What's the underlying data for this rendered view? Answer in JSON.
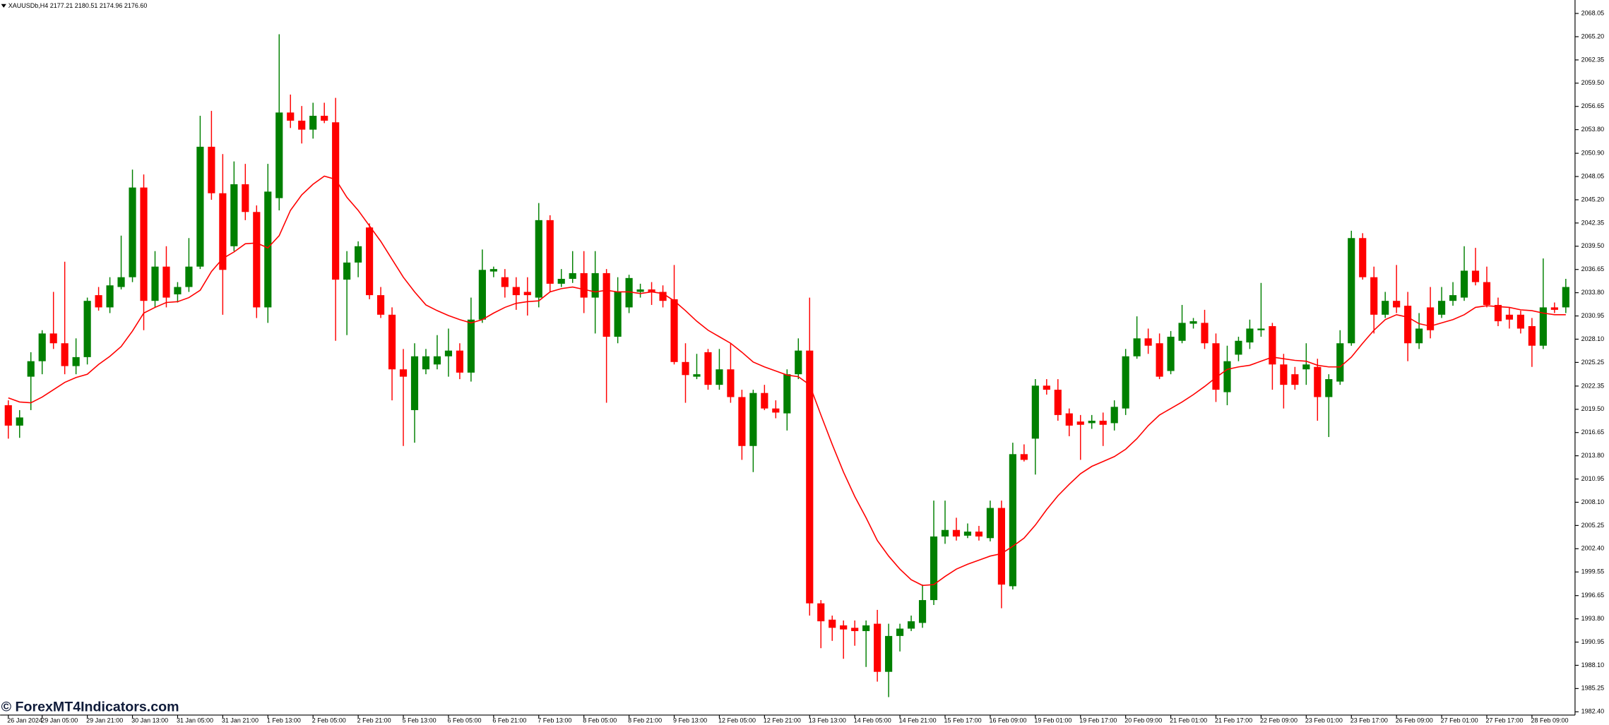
{
  "chart_data": {
    "type": "candlestick",
    "title": "XAUUSDb,H4 2177.21 2180.51 2174.96 2176.60",
    "watermark": "© ForexMT4Indicators.com",
    "up_color": "#008000",
    "down_color": "#ff0000",
    "grid": false,
    "categories": [
      "26 Jan 2024",
      null,
      null,
      "29 Jan 05:00",
      null,
      null,
      null,
      "29 Jan 21:00",
      null,
      null,
      null,
      "30 Jan 13:00",
      null,
      null,
      null,
      "31 Jan 05:00",
      null,
      null,
      null,
      "31 Jan 21:00",
      null,
      null,
      null,
      "1 Feb 13:00",
      null,
      null,
      null,
      "2 Feb 05:00",
      null,
      null,
      null,
      "2 Feb 21:00",
      null,
      null,
      null,
      "5 Feb 13:00",
      null,
      null,
      null,
      "6 Feb 05:00",
      null,
      null,
      null,
      "6 Feb 21:00",
      null,
      null,
      null,
      "7 Feb 13:00",
      null,
      null,
      null,
      "8 Feb 05:00",
      null,
      null,
      null,
      "8 Feb 21:00",
      null,
      null,
      null,
      "9 Feb 13:00",
      null,
      null,
      null,
      "12 Feb 05:00",
      null,
      null,
      null,
      "12 Feb 21:00",
      null,
      null,
      null,
      "13 Feb 13:00",
      null,
      null,
      null,
      "14 Feb 05:00",
      null,
      null,
      null,
      "14 Feb 21:00",
      null,
      null,
      null,
      "15 Feb 17:00",
      null,
      null,
      null,
      "16 Feb 09:00",
      null,
      null,
      null,
      "19 Feb 01:00",
      null,
      null,
      null,
      "19 Feb 17:00",
      null,
      null,
      null,
      "20 Feb 09:00",
      null,
      null,
      null,
      "21 Feb 01:00",
      null,
      null,
      null,
      "21 Feb 17:00",
      null,
      null,
      null,
      "22 Feb 09:00",
      null,
      null,
      null,
      "23 Feb 01:00",
      null,
      null,
      null,
      "23 Feb 17:00",
      null,
      null,
      null,
      "26 Feb 09:00",
      null,
      null,
      null,
      "27 Feb 01:00",
      null,
      null,
      null,
      "27 Feb 17:00",
      null,
      null,
      null,
      "28 Feb 09:00",
      null,
      null,
      null
    ],
    "open": [
      2020.0,
      2017.5,
      2023.5,
      2025.4,
      2028.8,
      2027.6,
      2024.8,
      2025.9,
      2033.5,
      2032.0,
      2034.5,
      2035.7,
      2046.7,
      2032.8,
      2037.0,
      2033.6,
      2034.5,
      2037.0,
      2051.7,
      2046.0,
      2039.5,
      2047.1,
      2043.7,
      2032.0,
      2045.4,
      2055.9,
      2054.9,
      2053.8,
      2055.5,
      2054.7,
      2035.4,
      2037.5,
      2041.8,
      2033.5,
      2031.1,
      2024.4,
      2019.4,
      2024.4,
      2025.0,
      2026.0,
      2026.7,
      2024.0,
      2030.5,
      2036.4,
      2035.7,
      2034.5,
      2033.9,
      2033.2,
      2042.7,
      2034.9,
      2035.5,
      2036.2,
      2033.2,
      2036.2,
      2028.4,
      2032.0,
      2033.9,
      2034.2,
      2033.9,
      2033.0,
      2025.3,
      2023.5,
      2026.5,
      2022.5,
      2024.4,
      2021.0,
      2015.0,
      2021.5,
      2019.6,
      2019.0,
      2023.8,
      2026.7,
      1995.7,
      1993.7,
      1993.0,
      1992.7,
      1992.3,
      1993.2,
      1987.3,
      1991.7,
      1992.6,
      1993.3,
      1996.1,
      2003.9,
      2004.7,
      2004.0,
      2004.5,
      2003.7,
      2007.4,
      1997.8,
      2014.0,
      2015.9,
      2022.4,
      2021.9,
      2019.0,
      2018.0,
      2017.8,
      2018.1,
      2017.8,
      2019.6,
      2026.0,
      2028.2,
      2027.6,
      2024.2,
      2027.9,
      2030.0,
      2030.1,
      2027.6,
      2021.6,
      2026.2,
      2027.7,
      2029.2,
      2029.7,
      2025.0,
      2023.8,
      2024.4,
      2024.7,
      2021.0,
      2022.9,
      2027.6,
      2040.5,
      2035.7,
      2031.1,
      2032.8,
      2032.2,
      2027.6,
      2032.0,
      2031.1,
      2032.8,
      2033.2,
      2036.5,
      2035.1,
      2032.3,
      2031.1,
      2031.1,
      2029.7,
      2027.3,
      2032.0,
      2032.0
    ],
    "high": [
      2020.6,
      2019.4,
      2026.5,
      2029.2,
      2033.9,
      2037.6,
      2028.2,
      2033.2,
      2034.5,
      2035.7,
      2040.8,
      2048.9,
      2048.3,
      2038.9,
      2039.5,
      2035.1,
      2040.5,
      2055.5,
      2056.1,
      2050.8,
      2049.9,
      2049.6,
      2044.5,
      2049.6,
      2065.5,
      2058.1,
      2056.7,
      2057.1,
      2057.1,
      2057.7,
      2038.9,
      2040.1,
      2042.3,
      2034.5,
      2032.0,
      2026.9,
      2027.6,
      2026.9,
      2028.6,
      2029.4,
      2027.6,
      2033.2,
      2039.1,
      2037.0,
      2036.7,
      2035.7,
      2035.7,
      2044.8,
      2043.3,
      2036.7,
      2038.9,
      2038.9,
      2038.9,
      2036.7,
      2035.7,
      2036.0,
      2034.9,
      2035.1,
      2034.7,
      2037.2,
      2027.6,
      2026.3,
      2026.9,
      2026.9,
      2027.6,
      2021.9,
      2021.9,
      2022.5,
      2020.6,
      2024.4,
      2028.2,
      2033.2,
      1996.1,
      1994.2,
      1993.6,
      1993.6,
      1993.6,
      1994.9,
      1993.2,
      1993.2,
      1994.2,
      1998.0,
      2008.3,
      2008.3,
      2006.2,
      2005.5,
      2005.2,
      2008.3,
      2008.3,
      2015.4,
      2015.2,
      2023.2,
      2023.2,
      2023.2,
      2019.6,
      2018.8,
      2018.8,
      2019.1,
      2020.6,
      2026.9,
      2030.9,
      2029.4,
      2028.8,
      2029.1,
      2032.3,
      2030.7,
      2031.7,
      2028.8,
      2027.3,
      2028.4,
      2030.5,
      2035.0,
      2030.1,
      2026.3,
      2024.7,
      2027.6,
      2025.7,
      2023.8,
      2029.2,
      2041.4,
      2041.1,
      2037.0,
      2033.9,
      2037.2,
      2033.9,
      2031.3,
      2034.5,
      2034.5,
      2035.1,
      2039.5,
      2039.3,
      2037.0,
      2033.2,
      2032.0,
      2031.6,
      2030.7,
      2038.0,
      2032.6,
      2035.5
    ],
    "low": [
      2015.9,
      2016.0,
      2019.4,
      2023.8,
      2026.9,
      2023.8,
      2023.8,
      2025.0,
      2031.6,
      2031.3,
      2034.2,
      2035.1,
      2029.2,
      2032.0,
      2032.0,
      2032.6,
      2033.9,
      2036.7,
      2045.2,
      2031.1,
      2038.9,
      2042.7,
      2030.7,
      2030.1,
      2043.9,
      2054.0,
      2052.1,
      2052.7,
      2054.6,
      2027.9,
      2028.6,
      2035.7,
      2033.0,
      2030.7,
      2020.6,
      2015.0,
      2015.4,
      2023.8,
      2024.4,
      2023.5,
      2023.2,
      2022.9,
      2030.1,
      2035.7,
      2033.2,
      2031.7,
      2031.0,
      2032.0,
      2033.9,
      2034.5,
      2035.0,
      2031.3,
      2028.8,
      2020.3,
      2027.6,
      2031.3,
      2033.2,
      2032.3,
      2032.0,
      2025.0,
      2020.3,
      2023.2,
      2021.9,
      2021.9,
      2020.3,
      2013.3,
      2011.8,
      2019.4,
      2018.4,
      2016.9,
      2023.2,
      1994.2,
      1990.2,
      1991.1,
      1988.9,
      1990.5,
      1987.9,
      1986.1,
      1984.2,
      1989.8,
      1992.3,
      1992.7,
      1995.5,
      2003.0,
      2003.4,
      2003.7,
      2003.4,
      2003.3,
      1995.1,
      1997.4,
      2013.1,
      2011.5,
      2021.3,
      2018.1,
      2016.2,
      2013.3,
      2017.1,
      2015.0,
      2016.9,
      2018.8,
      2025.7,
      2026.3,
      2023.2,
      2023.8,
      2027.6,
      2029.4,
      2026.9,
      2020.4,
      2020.0,
      2025.4,
      2026.9,
      2028.4,
      2021.9,
      2019.6,
      2021.9,
      2022.5,
      2018.1,
      2016.1,
      2022.5,
      2027.3,
      2035.4,
      2028.8,
      2030.7,
      2031.3,
      2025.4,
      2026.9,
      2028.2,
      2030.7,
      2032.2,
      2032.8,
      2034.7,
      2032.0,
      2029.7,
      2029.4,
      2028.8,
      2024.7,
      2026.9,
      2031.3,
      2031.3
    ],
    "close": [
      2017.5,
      2018.5,
      2025.4,
      2028.8,
      2027.6,
      2024.8,
      2025.9,
      2032.8,
      2032.0,
      2034.7,
      2035.7,
      2046.7,
      2032.8,
      2037.0,
      2033.2,
      2034.5,
      2037.0,
      2051.7,
      2046.0,
      2036.6,
      2047.1,
      2043.7,
      2032.0,
      2046.2,
      2055.9,
      2054.9,
      2053.8,
      2055.5,
      2054.9,
      2035.4,
      2037.5,
      2039.5,
      2033.5,
      2031.1,
      2024.4,
      2023.5,
      2026.0,
      2026.0,
      2026.0,
      2026.7,
      2024.0,
      2030.5,
      2036.6,
      2036.7,
      2034.5,
      2033.5,
      2033.5,
      2042.7,
      2034.9,
      2035.5,
      2036.2,
      2033.2,
      2036.2,
      2028.4,
      2033.9,
      2035.6,
      2034.2,
      2033.9,
      2032.8,
      2025.3,
      2023.7,
      2023.8,
      2022.5,
      2024.4,
      2021.0,
      2015.0,
      2021.5,
      2019.6,
      2019.1,
      2023.8,
      2026.7,
      1995.7,
      1993.5,
      1992.7,
      1992.5,
      1992.3,
      1993.0,
      1987.3,
      1991.7,
      1992.6,
      1993.5,
      1996.1,
      2003.9,
      2004.7,
      2003.9,
      2004.5,
      2003.9,
      2007.4,
      1998.0,
      2014.0,
      2013.3,
      2022.4,
      2021.9,
      2018.8,
      2017.5,
      2017.6,
      2018.1,
      2017.6,
      2019.8,
      2026.0,
      2028.2,
      2027.3,
      2023.5,
      2028.4,
      2030.1,
      2030.3,
      2027.6,
      2021.9,
      2025.4,
      2027.9,
      2029.4,
      2029.4,
      2025.0,
      2022.5,
      2022.5,
      2025.0,
      2021.0,
      2023.2,
      2027.6,
      2040.5,
      2035.7,
      2031.1,
      2032.8,
      2032.0,
      2027.6,
      2029.4,
      2029.2,
      2032.8,
      2033.5,
      2036.5,
      2035.1,
      2032.3,
      2030.3,
      2030.5,
      2029.4,
      2027.3,
      2032.0,
      2031.7,
      2034.5
    ],
    "overlays": [
      {
        "type": "line",
        "color": "#ff0000",
        "values": [
          2020.9,
          2020.4,
          2020.3,
          2021.0,
          2021.9,
          2022.8,
          2023.4,
          2023.8,
          2025.0,
          2026.0,
          2027.2,
          2029.1,
          2031.3,
          2032.0,
          2032.6,
          2032.7,
          2033.2,
          2034.1,
          2036.4,
          2038.0,
          2038.8,
          2039.8,
          2039.9,
          2039.3,
          2040.8,
          2043.9,
          2045.8,
          2047.1,
          2048.1,
          2047.7,
          2045.5,
          2043.9,
          2042.0,
          2040.1,
          2037.9,
          2035.7,
          2033.9,
          2032.3,
          2031.6,
          2031.0,
          2030.5,
          2030.1,
          2030.5,
          2031.3,
          2032.0,
          2032.5,
          2032.7,
          2032.8,
          2033.9,
          2034.3,
          2034.5,
          2034.2,
          2033.9,
          2034.1,
          2033.9,
          2033.9,
          2033.7,
          2033.9,
          2033.7,
          2032.8,
          2031.6,
          2030.3,
          2029.2,
          2028.4,
          2027.6,
          2026.5,
          2025.3,
          2024.7,
          2024.2,
          2023.7,
          2023.5,
          2022.5,
          2018.8,
          2015.2,
          2011.8,
          2008.8,
          2006.2,
          2003.4,
          2001.5,
          1999.9,
          1998.6,
          1997.9,
          1998.0,
          1999.0,
          1999.9,
          2000.5,
          2001.0,
          2001.5,
          2001.8,
          2002.7,
          2003.7,
          2005.3,
          2007.2,
          2008.9,
          2010.3,
          2011.6,
          2012.5,
          2013.1,
          2013.7,
          2014.6,
          2015.9,
          2017.5,
          2018.8,
          2019.6,
          2020.4,
          2021.3,
          2022.3,
          2023.4,
          2024.4,
          2024.7,
          2024.9,
          2025.4,
          2025.9,
          2025.7,
          2025.5,
          2025.4,
          2024.9,
          2024.7,
          2024.7,
          2025.9,
          2027.6,
          2029.2,
          2030.5,
          2031.1,
          2030.8,
          2030.0,
          2029.7,
          2030.1,
          2030.5,
          2031.1,
          2032.0,
          2032.2,
          2032.1,
          2032.0,
          2031.7,
          2031.6,
          2031.3,
          2031.1,
          2031.1
        ]
      }
    ],
    "ylim": [
      1982.0,
      2069.7
    ],
    "yticks": [
      2068.05,
      {
        "value": 2065.2,
        "label": "2065.20"
      },
      2062.35,
      {
        "value": 2059.5,
        "label": "2059.50"
      },
      2056.65,
      {
        "value": 2053.8,
        "label": "2053.80"
      },
      {
        "value": 2050.9,
        "label": "2050.90"
      },
      2048.05,
      {
        "value": 2045.2,
        "label": "2045.20"
      },
      2042.35,
      {
        "value": 2039.5,
        "label": "2039.50"
      },
      2036.65,
      {
        "value": 2033.8,
        "label": "2033.80"
      },
      2030.95,
      {
        "value": 2028.1,
        "label": "2028.10"
      },
      2025.25,
      2022.35,
      {
        "value": 2019.5,
        "label": "2019.50"
      },
      2016.65,
      {
        "value": 2013.8,
        "label": "2013.80"
      },
      2010.95,
      {
        "value": 2008.1,
        "label": "2008.10"
      },
      2005.25,
      {
        "value": 2002.4,
        "label": "2002.40"
      },
      1999.55,
      1996.65,
      {
        "value": 1993.8,
        "label": "1993.80"
      },
      1990.95,
      {
        "value": 1988.1,
        "label": "1988.10"
      },
      1985.25,
      {
        "value": 1982.4,
        "label": "1982.40"
      }
    ]
  }
}
